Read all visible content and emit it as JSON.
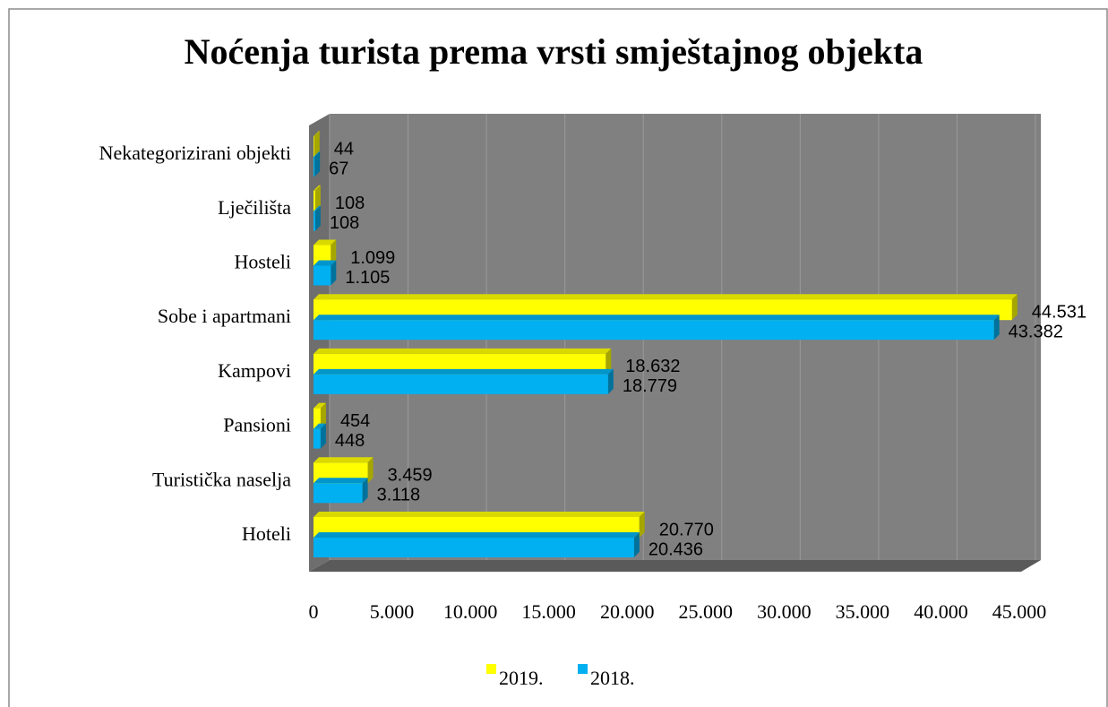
{
  "chart_data": {
    "type": "bar",
    "orientation": "horizontal",
    "title": "Noćenja turista prema vrsti smještajnog objekta",
    "categories": [
      "Hoteli",
      "Turistička naselja",
      "Pansioni",
      "Kampovi",
      "Sobe i apartmani",
      "Hosteli",
      "Lječilišta",
      "Nekategorizirani objekti"
    ],
    "series": [
      {
        "name": "2019.",
        "color": "#ffff00",
        "values": [
          20770,
          3459,
          454,
          18632,
          44531,
          1099,
          108,
          44
        ],
        "value_labels": [
          "20.770",
          "3.459",
          "454",
          "18.632",
          "44.531",
          "1.099",
          "108",
          "44"
        ]
      },
      {
        "name": "2018.",
        "color": "#00b0f0",
        "values": [
          20436,
          3118,
          448,
          18779,
          43382,
          1105,
          108,
          67
        ],
        "value_labels": [
          "20.436",
          "3.118",
          "448",
          "18.779",
          "43.382",
          "1.105",
          "108",
          "67"
        ]
      }
    ],
    "xlim": [
      0,
      45000
    ],
    "xticks": [
      0,
      {
        "value": 5000,
        "label": "5.000"
      },
      {
        "value": 10000,
        "label": "10.000"
      },
      {
        "value": 15000,
        "label": "15.000"
      },
      {
        "value": 20000,
        "label": "20.000"
      },
      {
        "value": 25000,
        "label": "25.000"
      },
      {
        "value": 30000,
        "label": "30.000"
      },
      {
        "value": 35000,
        "label": "35.000"
      },
      {
        "value": 40000,
        "label": "40.000"
      },
      {
        "value": 45000,
        "label": "45.000"
      }
    ],
    "grid": true,
    "legend": "bottom"
  }
}
